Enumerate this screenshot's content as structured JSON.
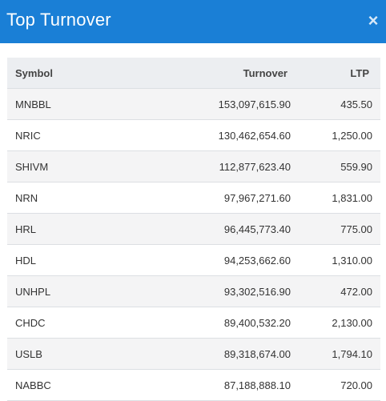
{
  "dialog": {
    "title": "Top Turnover",
    "close_label": "×"
  },
  "table": {
    "headers": {
      "symbol": "Symbol",
      "turnover": "Turnover",
      "ltp": "LTP"
    },
    "rows": [
      {
        "symbol": "MNBBL",
        "turnover": "153,097,615.90",
        "ltp": "435.50"
      },
      {
        "symbol": "NRIC",
        "turnover": "130,462,654.60",
        "ltp": "1,250.00"
      },
      {
        "symbol": "SHIVM",
        "turnover": "112,877,623.40",
        "ltp": "559.90"
      },
      {
        "symbol": "NRN",
        "turnover": "97,967,271.60",
        "ltp": "1,831.00"
      },
      {
        "symbol": "HRL",
        "turnover": "96,445,773.40",
        "ltp": "775.00"
      },
      {
        "symbol": "HDL",
        "turnover": "94,253,662.60",
        "ltp": "1,310.00"
      },
      {
        "symbol": "UNHPL",
        "turnover": "93,302,516.90",
        "ltp": "472.00"
      },
      {
        "symbol": "CHDC",
        "turnover": "89,400,532.20",
        "ltp": "2,130.00"
      },
      {
        "symbol": "USLB",
        "turnover": "89,318,674.00",
        "ltp": "1,794.10"
      },
      {
        "symbol": "NABBC",
        "turnover": "87,188,888.10",
        "ltp": "720.00"
      }
    ]
  }
}
